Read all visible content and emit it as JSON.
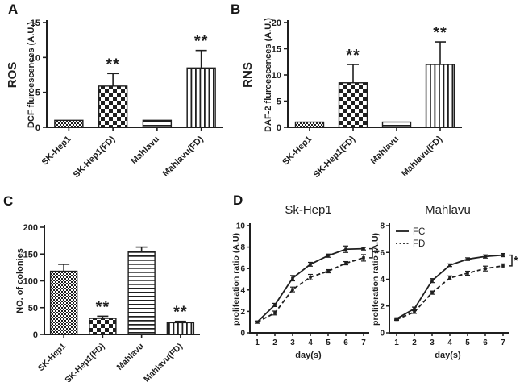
{
  "figure": {
    "background": "#ffffff",
    "ink": "#1f1f1f"
  },
  "panels": [
    {
      "letter": "A"
    },
    {
      "letter": "B"
    },
    {
      "letter": "C"
    },
    {
      "letter": "D"
    }
  ],
  "chart_data": [
    {
      "id": "A",
      "type": "bar",
      "side_label": "ROS",
      "ylabel": "DCF fluroescences (A.U.)",
      "xlabel": "",
      "categories": [
        "SK-Hep1",
        "SK-Hep1(FD)",
        "Mahlavu",
        "Mahlavu(FD)"
      ],
      "values": [
        1.0,
        5.9,
        1.0,
        8.5
      ],
      "errors": [
        0,
        1.8,
        0,
        2.5
      ],
      "significance": [
        "",
        "**",
        "",
        "**"
      ],
      "patterns": [
        "fine-check",
        "coarse-check",
        "hlines",
        "vlines"
      ],
      "ylim": [
        0,
        15
      ],
      "yticks": [
        0,
        5,
        10,
        15
      ],
      "grid": false
    },
    {
      "id": "B",
      "type": "bar",
      "side_label": "RNS",
      "ylabel": "DAF-2 fluroescences (A.U.)",
      "xlabel": "",
      "categories": [
        "SK-Hep1",
        "SK-Hep1(FD)",
        "Mahlavu",
        "Mahlavu(FD)"
      ],
      "values": [
        1.0,
        8.5,
        1.0,
        12.0
      ],
      "errors": [
        0,
        3.5,
        0,
        4.3
      ],
      "significance": [
        "",
        "**",
        "",
        "**"
      ],
      "patterns": [
        "fine-check",
        "coarse-check",
        "hlines",
        "vlines"
      ],
      "ylim": [
        0,
        20
      ],
      "yticks": [
        0,
        5,
        10,
        15,
        20
      ],
      "grid": false
    },
    {
      "id": "C",
      "type": "bar",
      "side_label": "",
      "ylabel": "NO. of colonies",
      "xlabel": "",
      "categories": [
        "SK-Hep1",
        "SK-Hep1(FD)",
        "Mahlavu",
        "Mahlavu(FD)"
      ],
      "values": [
        118,
        30,
        155,
        22
      ],
      "errors": [
        13,
        4,
        8,
        2.5
      ],
      "significance": [
        "",
        "**",
        "",
        "**"
      ],
      "patterns": [
        "fine-check",
        "coarse-check",
        "hlines",
        "vlines"
      ],
      "ylim": [
        0,
        200
      ],
      "yticks": [
        0,
        50,
        100,
        150,
        200
      ],
      "grid": false
    },
    {
      "id": "D1",
      "type": "line",
      "title": "Sk-Hep1",
      "ylabel": "proliferation ratio (A.U)",
      "xlabel": "day(s)",
      "x": [
        1,
        2,
        3,
        4,
        5,
        6,
        7
      ],
      "series": [
        {
          "name": "FC",
          "line": "solid",
          "values": [
            1.0,
            2.6,
            5.1,
            6.4,
            7.2,
            7.8,
            7.85
          ],
          "errors": [
            0.1,
            0.15,
            0.25,
            0.18,
            0.15,
            0.3,
            0.12
          ]
        },
        {
          "name": "FD",
          "line": "dashed",
          "values": [
            1.0,
            1.85,
            4.05,
            5.2,
            5.75,
            6.5,
            7.0
          ],
          "errors": [
            0.1,
            0.18,
            0.22,
            0.25,
            0.15,
            0.15,
            0.3
          ]
        }
      ],
      "ylim": [
        0,
        10
      ],
      "yticks": [
        0,
        2,
        4,
        6,
        8,
        10
      ],
      "bracket_label": "*",
      "show_legend": false,
      "legend_position": "top-left",
      "grid": false
    },
    {
      "id": "D2",
      "type": "line",
      "title": "Mahlavu",
      "ylabel": "proliferation ratio (A.U)",
      "xlabel": "day(s)",
      "x": [
        1,
        2,
        3,
        4,
        5,
        6,
        7
      ],
      "series": [
        {
          "name": "FC",
          "line": "solid",
          "values": [
            1.05,
            1.8,
            3.9,
            5.05,
            5.5,
            5.7,
            5.8
          ],
          "errors": [
            0.07,
            0.12,
            0.15,
            0.1,
            0.1,
            0.12,
            0.12
          ]
        },
        {
          "name": "FD",
          "line": "dashed",
          "values": [
            1.0,
            1.55,
            3.0,
            4.1,
            4.45,
            4.8,
            5.0
          ],
          "errors": [
            0.07,
            0.1,
            0.12,
            0.15,
            0.15,
            0.18,
            0.15
          ]
        }
      ],
      "ylim": [
        0,
        8
      ],
      "yticks": [
        0,
        2,
        4,
        6,
        8
      ],
      "bracket_label": "*",
      "show_legend": true,
      "legend_position": "top-left",
      "grid": false
    }
  ]
}
